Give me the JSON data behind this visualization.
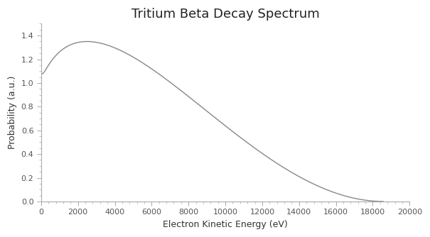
{
  "title": "Tritium Beta Decay Spectrum",
  "xlabel": "Electron Kinetic Energy (eV)",
  "ylabel": "Probability (a.u.)",
  "Q_eV": 18574,
  "m_nu": 0,
  "xlim": [
    0,
    20000
  ],
  "ylim": [
    0,
    1.5
  ],
  "xticks": [
    0,
    2000,
    4000,
    6000,
    8000,
    10000,
    12000,
    14000,
    16000,
    18000,
    20000
  ],
  "yticks": [
    0,
    0.2,
    0.4,
    0.6,
    0.8,
    1.0,
    1.2,
    1.4
  ],
  "line_color": "#888888",
  "line_width": 1.0,
  "background_color": "#ffffff",
  "title_fontsize": 13,
  "label_fontsize": 9,
  "tick_fontsize": 8,
  "spine_color": "#aaaaaa",
  "tick_color": "#555555"
}
